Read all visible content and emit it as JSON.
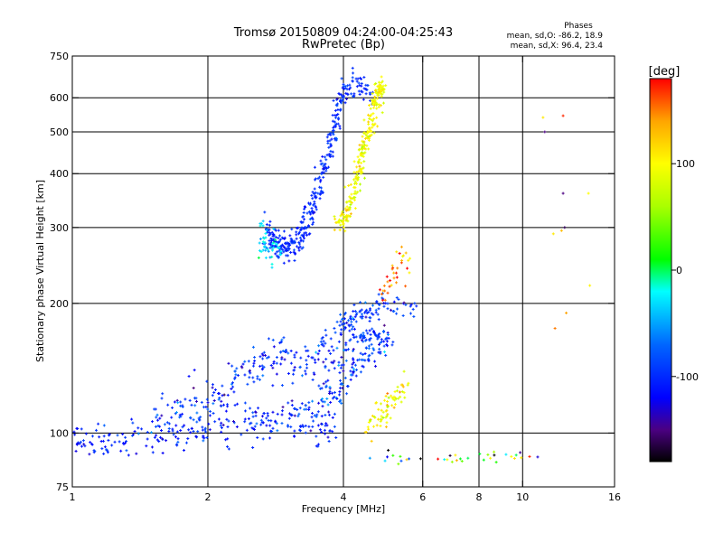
{
  "chart_data": [
    {
      "type": "scatter",
      "title": "Tromsø 20150809 04:24:00-04:25:43",
      "subtitle": "RwPretec (Bp)",
      "xlabel": "Frequency [MHz]",
      "ylabel": "Stationary phase Virtual Height [km]",
      "x_scale": "log",
      "y_scale": "log",
      "xlim": [
        1,
        16
      ],
      "ylim": [
        75,
        750
      ],
      "x_ticks": [
        1,
        2,
        4,
        6,
        8,
        10,
        16
      ],
      "x_tick_labels": [
        "1",
        "2",
        "4",
        "6",
        "8",
        "10",
        "16"
      ],
      "y_ticks": [
        75,
        100,
        200,
        300,
        400,
        500,
        600,
        750
      ],
      "y_tick_labels": [
        "75",
        "100",
        "200",
        "300",
        "400",
        "500",
        "600",
        "750"
      ],
      "grid_x": [
        2,
        4,
        6,
        8,
        10
      ],
      "grid_y": [
        100,
        200,
        300,
        400,
        500,
        600
      ],
      "grid": true,
      "color_by": "phase (deg)",
      "phase_stats": {
        "heading": "Phases",
        "line_o": "mean, sd,O: -86.2, 18.9",
        "line_x": "mean, sd,X:  96.4, 23.4"
      },
      "traces": [
        {
          "kind": "band",
          "path": [
            [
              1.0,
              95
            ],
            [
              1.1,
              95
            ],
            [
              1.2,
              96
            ],
            [
              1.35,
              97
            ],
            [
              1.5,
              98
            ],
            [
              1.7,
              99
            ],
            [
              1.9,
              101
            ],
            [
              2.1,
              103
            ],
            [
              2.3,
              104
            ],
            [
              2.5,
              105
            ],
            [
              2.7,
              106
            ],
            [
              2.9,
              106
            ],
            [
              3.2,
              106
            ],
            [
              3.5,
              105
            ],
            [
              3.8,
              104
            ]
          ],
          "y_jitter": 0.05,
          "count": 260,
          "phase": -105,
          "phase_sd": 15
        },
        {
          "kind": "band",
          "path": [
            [
              1.5,
              110
            ],
            [
              1.8,
              115
            ],
            [
              2.0,
              120
            ],
            [
              2.2,
              125
            ],
            [
              2.4,
              135
            ],
            [
              2.6,
              145
            ],
            [
              2.8,
              150
            ],
            [
              3.0,
              150
            ],
            [
              3.3,
              145
            ],
            [
              3.7,
              145
            ],
            [
              4.0,
              150
            ],
            [
              4.4,
              150
            ]
          ],
          "y_jitter": 0.06,
          "count": 230,
          "phase": -100,
          "phase_sd": 20
        },
        {
          "kind": "band",
          "path": [
            [
              3.0,
              110
            ],
            [
              3.4,
              118
            ],
            [
              3.8,
              125
            ],
            [
              4.0,
              130
            ],
            [
              4.2,
              140
            ],
            [
              4.5,
              150
            ],
            [
              4.8,
              160
            ],
            [
              5.1,
              165
            ]
          ],
          "y_jitter": 0.05,
          "count": 120,
          "phase": -95,
          "phase_sd": 25
        },
        {
          "kind": "band",
          "path": [
            [
              3.5,
              160
            ],
            [
              3.8,
              170
            ],
            [
              4.0,
              180
            ],
            [
              4.2,
              185
            ],
            [
              4.5,
              190
            ],
            [
              4.8,
              195
            ],
            [
              5.2,
              197
            ],
            [
              5.7,
              195
            ]
          ],
          "y_jitter": 0.03,
          "count": 110,
          "phase": -95,
          "phase_sd": 15
        },
        {
          "kind": "band",
          "path": [
            [
              4.0,
              165
            ],
            [
              4.3,
              168
            ],
            [
              4.6,
              168
            ],
            [
              5.0,
              168
            ]
          ],
          "y_jitter": 0.02,
          "count": 45,
          "phase": -90,
          "phase_sd": 15
        },
        {
          "kind": "band",
          "path": [
            [
              2.7,
              300
            ],
            [
              2.8,
              280
            ],
            [
              2.9,
              270
            ],
            [
              3.0,
              270
            ],
            [
              3.1,
              275
            ],
            [
              3.2,
              285
            ],
            [
              3.3,
              305
            ],
            [
              3.4,
              330
            ],
            [
              3.5,
              360
            ],
            [
              3.6,
              400
            ],
            [
              3.7,
              450
            ],
            [
              3.8,
              500
            ],
            [
              3.9,
              560
            ],
            [
              4.0,
              620
            ],
            [
              4.3,
              635
            ],
            [
              4.6,
              635
            ]
          ],
          "y_jitter": 0.04,
          "count": 380,
          "phase": -100,
          "phase_sd": 12
        },
        {
          "kind": "band",
          "path": [
            [
              2.6,
              290
            ],
            [
              2.7,
              270
            ],
            [
              2.8,
              265
            ],
            [
              2.9,
              270
            ]
          ],
          "y_jitter": 0.05,
          "count": 45,
          "phase": -25,
          "phase_sd": 15
        },
        {
          "kind": "band",
          "path": [
            [
              3.8,
              305
            ],
            [
              4.0,
              310
            ],
            [
              4.1,
              330
            ],
            [
              4.2,
              360
            ],
            [
              4.3,
              400
            ],
            [
              4.4,
              440
            ],
            [
              4.5,
              480
            ],
            [
              4.6,
              530
            ],
            [
              4.7,
              580
            ],
            [
              4.8,
              620
            ],
            [
              4.9,
              635
            ]
          ],
          "y_jitter": 0.03,
          "count": 260,
          "phase": 95,
          "phase_sd": 15
        },
        {
          "kind": "band",
          "path": [
            [
              4.5,
              105
            ],
            [
              4.7,
              108
            ],
            [
              4.9,
              112
            ],
            [
              5.1,
              118
            ],
            [
              5.3,
              125
            ],
            [
              5.5,
              130
            ]
          ],
          "y_jitter": 0.04,
          "count": 70,
          "phase": 100,
          "phase_sd": 20
        },
        {
          "kind": "band",
          "path": [
            [
              4.8,
              210
            ],
            [
              5.0,
              220
            ],
            [
              5.2,
              240
            ],
            [
              5.4,
              255
            ],
            [
              5.6,
              240
            ]
          ],
          "y_jitter": 0.05,
          "count": 35,
          "phase": 150,
          "phase_sd": 30
        },
        {
          "kind": "band",
          "path": [
            [
              4.5,
              88
            ],
            [
              5.0,
              87
            ],
            [
              5.5,
              88
            ],
            [
              6.0,
              87
            ],
            [
              7.0,
              87
            ],
            [
              8.0,
              88
            ],
            [
              9.0,
              88
            ],
            [
              10.5,
              89
            ]
          ],
          "y_jitter": 0.02,
          "count": 35,
          "phase": 0,
          "phase_sd": 110
        }
      ],
      "isolated_points": [
        {
          "x": 11.2,
          "y": 500,
          "phase": -150
        },
        {
          "x": 11.1,
          "y": 540,
          "phase": 110
        },
        {
          "x": 12.3,
          "y": 545,
          "phase": 170
        },
        {
          "x": 12.3,
          "y": 360,
          "phase": -150
        },
        {
          "x": 12.4,
          "y": 300,
          "phase": -160
        },
        {
          "x": 12.2,
          "y": 295,
          "phase": 130
        },
        {
          "x": 11.7,
          "y": 290,
          "phase": 110
        },
        {
          "x": 14.0,
          "y": 360,
          "phase": 100
        },
        {
          "x": 14.1,
          "y": 220,
          "phase": 105
        },
        {
          "x": 12.5,
          "y": 190,
          "phase": 140
        },
        {
          "x": 11.8,
          "y": 175,
          "phase": 150
        },
        {
          "x": 10.8,
          "y": 88,
          "phase": -130
        }
      ]
    },
    {
      "type": "colorbar",
      "unit_label": "[deg]",
      "range": [
        -180,
        180
      ],
      "ticks": [
        100,
        0,
        -100
      ],
      "tick_labels": [
        "100",
        "0",
        "-100"
      ],
      "colormap": "rainbow",
      "stops": [
        {
          "v": -180,
          "color": "#000000"
        },
        {
          "v": -150,
          "color": "#4b0082"
        },
        {
          "v": -120,
          "color": "#0000ff"
        },
        {
          "v": -70,
          "color": "#0066ff"
        },
        {
          "v": -20,
          "color": "#00ffff"
        },
        {
          "v": 10,
          "color": "#00ff00"
        },
        {
          "v": 60,
          "color": "#aaff00"
        },
        {
          "v": 100,
          "color": "#ffff00"
        },
        {
          "v": 140,
          "color": "#ffa500"
        },
        {
          "v": 180,
          "color": "#ff0000"
        }
      ]
    }
  ]
}
